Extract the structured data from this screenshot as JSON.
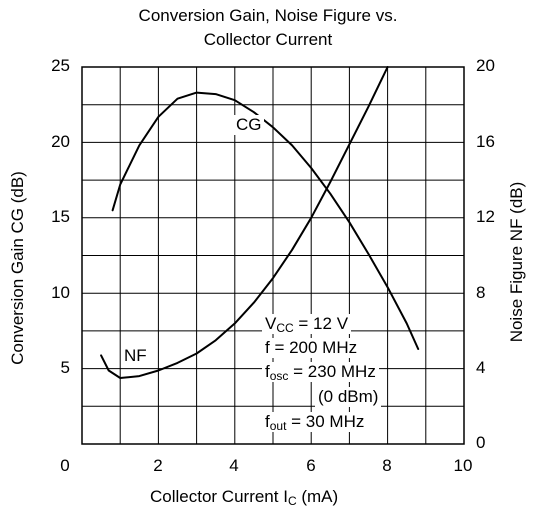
{
  "chart_data": {
    "type": "line",
    "title_line1": "Conversion Gain, Noise Figure vs.",
    "title_line2": "Collector Current",
    "xlabel": {
      "pre": "Collector Current  I",
      "sub": "C",
      "post": "  (mA)"
    },
    "ylabel_left": "Conversion Gain  CG  (dB)",
    "ylabel_right": "Noise Figure  NF  (dB)",
    "xlim": [
      0,
      10
    ],
    "ylim_left": [
      0,
      25
    ],
    "ylim_right": [
      0,
      20
    ],
    "x_ticks": [
      "0",
      "2",
      "4",
      "6",
      "8",
      "10"
    ],
    "y_ticks_left": [
      "25",
      "20",
      "15",
      "10",
      "5"
    ],
    "y_ticks_right": [
      "20",
      "16",
      "12",
      "8",
      "4",
      "0"
    ],
    "grid": true,
    "series": [
      {
        "name": "CG",
        "axis": "left",
        "x": [
          0.8,
          1.0,
          1.5,
          2.0,
          2.5,
          3.0,
          3.5,
          4.0,
          4.5,
          5.0,
          5.5,
          6.0,
          6.5,
          7.0,
          7.5,
          8.0,
          8.5,
          8.8
        ],
        "y": [
          15.5,
          17.2,
          19.8,
          21.7,
          22.9,
          23.3,
          23.2,
          22.8,
          22.0,
          21.0,
          19.8,
          18.3,
          16.6,
          14.7,
          12.6,
          10.4,
          8.0,
          6.3
        ]
      },
      {
        "name": "NF",
        "axis": "right",
        "x": [
          0.5,
          0.7,
          1.0,
          1.5,
          2.0,
          2.5,
          3.0,
          3.5,
          4.0,
          4.5,
          5.0,
          5.5,
          6.0,
          6.5,
          7.0,
          7.5,
          8.0
        ],
        "y": [
          4.7,
          3.9,
          3.5,
          3.6,
          3.9,
          4.3,
          4.8,
          5.5,
          6.4,
          7.5,
          8.8,
          10.3,
          12.0,
          13.9,
          15.9,
          17.9,
          20.0
        ]
      }
    ],
    "conditions": {
      "vcc": {
        "pre": "V",
        "sub": "CC",
        "post": " = 12 V"
      },
      "f": "f = 200 MHz",
      "fosc": {
        "pre": "f",
        "sub": "osc",
        "post": " = 230 MHz"
      },
      "fosc_level": "(0 dBm)",
      "fout": {
        "pre": "f",
        "sub": "out",
        "post": " = 30 MHz"
      }
    }
  }
}
